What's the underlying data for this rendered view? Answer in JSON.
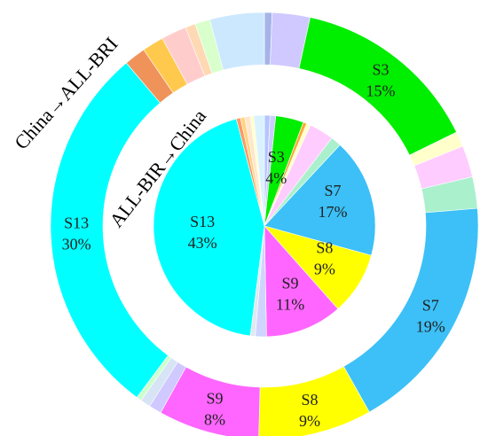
{
  "chart_data": [
    {
      "type": "pie",
      "title": "China→ALL-BRI",
      "ring": "outer",
      "slices": [
        {
          "label": "",
          "value": 0.6,
          "color": "#a5b4e8"
        },
        {
          "label": "",
          "value": 3.0,
          "color": "#cfc9ff"
        },
        {
          "label": "S3",
          "value": 15,
          "color": "#00ee00"
        },
        {
          "label": "",
          "value": 1.2,
          "color": "#ffffcc"
        },
        {
          "label": "",
          "value": 2.5,
          "color": "#ffccff"
        },
        {
          "label": "",
          "value": 2.5,
          "color": "#aaf0cc"
        },
        {
          "label": "S7",
          "value": 19,
          "color": "#3cc0f7"
        },
        {
          "label": "S8",
          "value": 9,
          "color": "#ffff00"
        },
        {
          "label": "S9",
          "value": 8,
          "color": "#ff66ff"
        },
        {
          "label": "",
          "value": 1.0,
          "color": "#cfc9ff"
        },
        {
          "label": "",
          "value": 0.8,
          "color": "#d6e4f5"
        },
        {
          "label": "",
          "value": 0.4,
          "color": "#ccffcc"
        },
        {
          "label": "S13",
          "value": 30,
          "color": "#00ffff"
        },
        {
          "label": "",
          "value": 1.7,
          "color": "#f0935a"
        },
        {
          "label": "",
          "value": 1.7,
          "color": "#ffc94d"
        },
        {
          "label": "",
          "value": 2.0,
          "color": "#ffcccc"
        },
        {
          "label": "",
          "value": 0.8,
          "color": "#ffd9b3"
        },
        {
          "label": "",
          "value": 1.2,
          "color": "#d9ffcc"
        },
        {
          "label": "",
          "value": 4.3,
          "color": "#cce8ff"
        }
      ]
    },
    {
      "type": "pie",
      "title": "ALL-BIR→China",
      "ring": "inner",
      "slices": [
        {
          "label": "",
          "value": 0.8,
          "color": "#b3c6ff"
        },
        {
          "label": "",
          "value": 0.8,
          "color": "#ccccff"
        },
        {
          "label": "S3",
          "value": 4,
          "color": "#00ee00"
        },
        {
          "label": "",
          "value": 0.5,
          "color": "#ffaa33"
        },
        {
          "label": "",
          "value": 0.6,
          "color": "#ffffcc"
        },
        {
          "label": "",
          "value": 3.5,
          "color": "#ffccff"
        },
        {
          "label": "",
          "value": 1.5,
          "color": "#aaf0cc"
        },
        {
          "label": "S7",
          "value": 17,
          "color": "#3cc0f7"
        },
        {
          "label": "S8",
          "value": 9,
          "color": "#ffff00"
        },
        {
          "label": "S9",
          "value": 11,
          "color": "#ff66ff"
        },
        {
          "label": "",
          "value": 1.6,
          "color": "#cfd4ff"
        },
        {
          "label": "",
          "value": 0.7,
          "color": "#e0e8f0"
        },
        {
          "label": "S13",
          "value": 43,
          "color": "#00ffff"
        },
        {
          "label": "",
          "value": 0.6,
          "color": "#ff9966"
        },
        {
          "label": "",
          "value": 0.6,
          "color": "#ffd480"
        },
        {
          "label": "",
          "value": 0.8,
          "color": "#ffe6cc"
        },
        {
          "label": "",
          "value": 0.5,
          "color": "#ffffcc"
        },
        {
          "label": "",
          "value": 1.5,
          "color": "#d9f2ff"
        }
      ]
    }
  ]
}
